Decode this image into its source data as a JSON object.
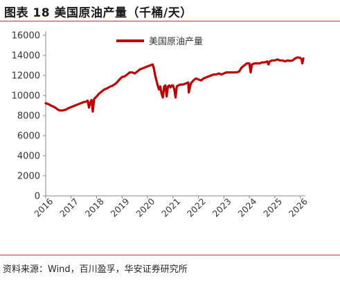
{
  "figure": {
    "title": "图表 18 美国原油产量（千桶/天）",
    "source": "资料来源：Wind，百川盈孚，华安证券研究所"
  },
  "chart_data": {
    "type": "line",
    "title": "",
    "xlabel": "",
    "ylabel": "",
    "x_ticks": [
      "2016",
      "2017",
      "2018",
      "2019",
      "2020",
      "2021",
      "2022",
      "2023",
      "2024",
      "2025",
      "2026"
    ],
    "y_ticks": [
      0,
      2000,
      4000,
      6000,
      8000,
      10000,
      12000,
      14000,
      16000
    ],
    "ylim": [
      0,
      16000
    ],
    "xlim": [
      2016.0,
      2026.2
    ],
    "grid": false,
    "legend_position": "top",
    "series": [
      {
        "name": "美国原油产量",
        "color": "#c00000",
        "points": [
          [
            2016.0,
            9230
          ],
          [
            2016.1,
            9150
          ],
          [
            2016.2,
            9000
          ],
          [
            2016.3,
            8900
          ],
          [
            2016.4,
            8750
          ],
          [
            2016.5,
            8550
          ],
          [
            2016.6,
            8500
          ],
          [
            2016.7,
            8530
          ],
          [
            2016.8,
            8600
          ],
          [
            2016.9,
            8750
          ],
          [
            2017.0,
            8850
          ],
          [
            2017.1,
            8950
          ],
          [
            2017.2,
            9050
          ],
          [
            2017.3,
            9150
          ],
          [
            2017.4,
            9250
          ],
          [
            2017.5,
            9350
          ],
          [
            2017.6,
            9400
          ],
          [
            2017.65,
            9500
          ],
          [
            2017.7,
            8800
          ],
          [
            2017.75,
            9300
          ],
          [
            2017.8,
            9550
          ],
          [
            2017.85,
            8400
          ],
          [
            2017.9,
            9650
          ],
          [
            2018.0,
            9900
          ],
          [
            2018.1,
            10200
          ],
          [
            2018.2,
            10400
          ],
          [
            2018.3,
            10600
          ],
          [
            2018.4,
            10700
          ],
          [
            2018.5,
            10850
          ],
          [
            2018.6,
            10950
          ],
          [
            2018.7,
            11100
          ],
          [
            2018.8,
            11300
          ],
          [
            2018.9,
            11600
          ],
          [
            2019.0,
            11850
          ],
          [
            2019.1,
            11900
          ],
          [
            2019.2,
            12100
          ],
          [
            2019.3,
            12300
          ],
          [
            2019.4,
            12300
          ],
          [
            2019.5,
            12200
          ],
          [
            2019.6,
            12400
          ],
          [
            2019.7,
            12600
          ],
          [
            2019.8,
            12700
          ],
          [
            2019.9,
            12800
          ],
          [
            2020.0,
            12900
          ],
          [
            2020.1,
            13000
          ],
          [
            2020.2,
            13100
          ],
          [
            2020.25,
            12700
          ],
          [
            2020.3,
            12000
          ],
          [
            2020.35,
            11500
          ],
          [
            2020.4,
            11000
          ],
          [
            2020.45,
            10600
          ],
          [
            2020.5,
            10900
          ],
          [
            2020.55,
            10200
          ],
          [
            2020.6,
            9800
          ],
          [
            2020.65,
            10900
          ],
          [
            2020.7,
            11000
          ],
          [
            2020.75,
            9900
          ],
          [
            2020.8,
            10900
          ],
          [
            2020.85,
            11000
          ],
          [
            2020.9,
            10800
          ],
          [
            2020.95,
            11000
          ],
          [
            2021.0,
            11000
          ],
          [
            2021.05,
            10600
          ],
          [
            2021.1,
            9800
          ],
          [
            2021.15,
            10900
          ],
          [
            2021.2,
            11000
          ],
          [
            2021.3,
            11100
          ],
          [
            2021.4,
            11100
          ],
          [
            2021.5,
            11200
          ],
          [
            2021.6,
            11300
          ],
          [
            2021.62,
            10300
          ],
          [
            2021.7,
            11200
          ],
          [
            2021.8,
            11500
          ],
          [
            2021.9,
            11700
          ],
          [
            2022.0,
            11600
          ],
          [
            2022.1,
            11500
          ],
          [
            2022.2,
            11700
          ],
          [
            2022.3,
            11800
          ],
          [
            2022.4,
            11900
          ],
          [
            2022.5,
            12000
          ],
          [
            2022.6,
            12100
          ],
          [
            2022.7,
            12100
          ],
          [
            2022.8,
            12200
          ],
          [
            2022.9,
            12100
          ],
          [
            2023.0,
            12200
          ],
          [
            2023.1,
            12300
          ],
          [
            2023.2,
            12300
          ],
          [
            2023.3,
            12300
          ],
          [
            2023.4,
            12300
          ],
          [
            2023.5,
            12300
          ],
          [
            2023.6,
            12400
          ],
          [
            2023.7,
            12800
          ],
          [
            2023.8,
            13000
          ],
          [
            2023.9,
            13200
          ],
          [
            2024.0,
            13200
          ],
          [
            2024.05,
            12300
          ],
          [
            2024.1,
            13100
          ],
          [
            2024.2,
            13200
          ],
          [
            2024.3,
            13200
          ],
          [
            2024.4,
            13200
          ],
          [
            2024.5,
            13300
          ],
          [
            2024.6,
            13300
          ],
          [
            2024.7,
            13400
          ],
          [
            2024.75,
            13100
          ],
          [
            2024.8,
            13400
          ],
          [
            2024.9,
            13500
          ],
          [
            2025.0,
            13500
          ],
          [
            2025.1,
            13600
          ],
          [
            2025.2,
            13500
          ],
          [
            2025.3,
            13500
          ],
          [
            2025.4,
            13400
          ],
          [
            2025.5,
            13500
          ],
          [
            2025.6,
            13450
          ],
          [
            2025.7,
            13500
          ],
          [
            2025.8,
            13700
          ],
          [
            2025.9,
            13800
          ],
          [
            2026.0,
            13750
          ],
          [
            2026.05,
            13600
          ],
          [
            2026.08,
            13200
          ],
          [
            2026.12,
            13700
          ]
        ]
      }
    ]
  }
}
